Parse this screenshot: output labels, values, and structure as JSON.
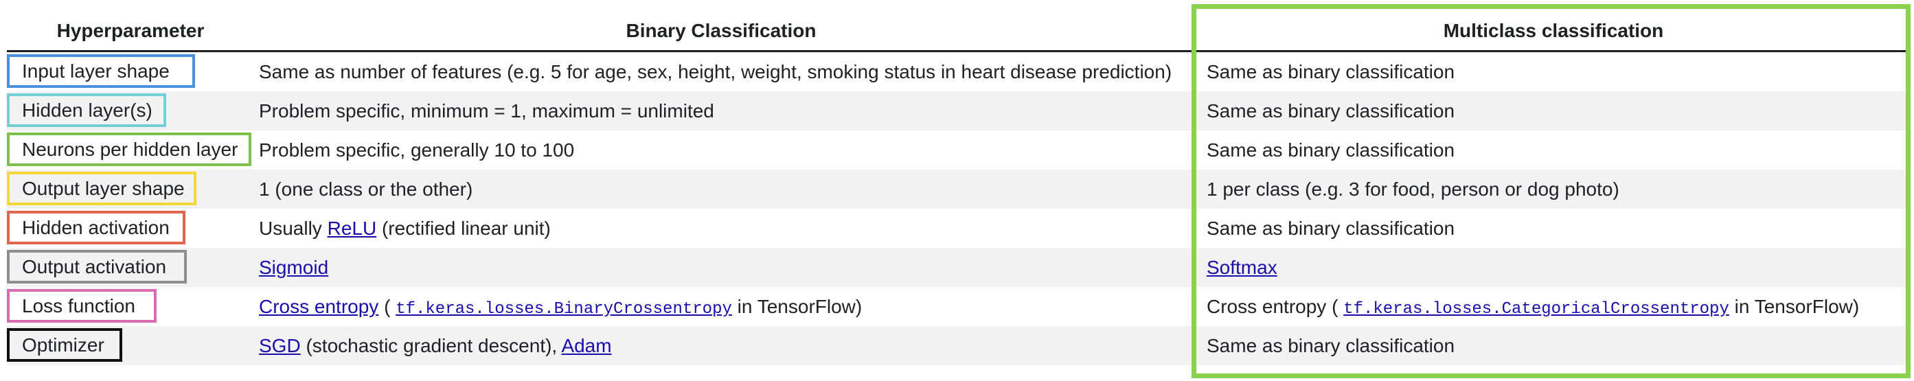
{
  "headers": {
    "col0": "Hyperparameter",
    "col1": "Binary Classification",
    "col2": "Multiclass classification"
  },
  "highlight_color": "#8bd14d",
  "rows": [
    {
      "hp": "Input layer shape",
      "box_color": "#4a90e2",
      "binary": {
        "text": "Same as number of features (e.g. 5 for age, sex, height, weight, smoking status in heart disease prediction)"
      },
      "multi": {
        "text": "Same as binary classification"
      }
    },
    {
      "hp": "Hidden layer(s)",
      "box_color": "#6fd0d8",
      "binary": {
        "text": "Problem specific, minimum = 1, maximum = unlimited"
      },
      "multi": {
        "text": "Same as binary classification"
      }
    },
    {
      "hp": "Neurons per hidden layer",
      "box_color": "#7cc24a",
      "binary": {
        "text": "Problem specific, generally 10 to 100"
      },
      "multi": {
        "text": "Same as binary classification"
      }
    },
    {
      "hp": "Output layer shape",
      "box_color": "#f2d73a",
      "binary": {
        "text": "1 (one class or the other)"
      },
      "multi": {
        "text": "1 per class (e.g. 3 for food, person or dog photo)"
      }
    },
    {
      "hp": "Hidden activation",
      "box_color": "#e0644e",
      "binary": {
        "pre": "Usually ",
        "link": "ReLU",
        "post": " (rectified linear unit)"
      },
      "multi": {
        "text": "Same as binary classification"
      }
    },
    {
      "hp": "Output activation",
      "box_color": "#8e8e8e",
      "binary": {
        "link": "Sigmoid"
      },
      "multi": {
        "link": "Softmax"
      }
    },
    {
      "hp": "Loss function",
      "box_color": "#d96bb0",
      "binary": {
        "link": "Cross entropy",
        "mid": " ( ",
        "code": "tf.keras.losses.BinaryCrossentropy",
        "post": "  in TensorFlow)"
      },
      "multi": {
        "pre": "Cross entropy ( ",
        "code": "tf.keras.losses.CategoricalCrossentropy",
        "post": "  in TensorFlow)"
      }
    },
    {
      "hp": "Optimizer",
      "box_color": "#111111",
      "binary": {
        "link": "SGD",
        "mid": " (stochastic gradient descent), ",
        "link2": "Adam"
      },
      "multi": {
        "text": "Same as binary classification"
      }
    }
  ]
}
